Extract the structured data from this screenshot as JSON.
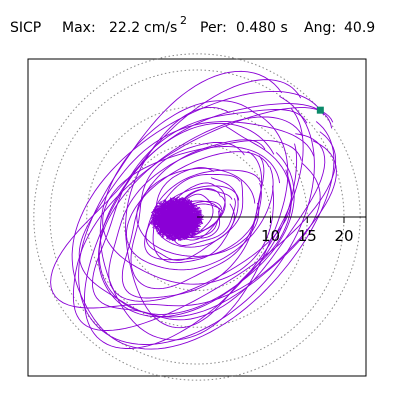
{
  "header": {
    "label": "SICP",
    "max_label": "Max:",
    "max_value": "22.2",
    "max_units": "cm/s",
    "max_exponent": "2",
    "period_label": "Per:",
    "period_value": "0.480 s",
    "angle_label": "Ang:",
    "angle_value": "40.9"
  },
  "chart_data": {
    "type": "scatter",
    "description_mode": "polar orbit trace of acceleration components",
    "title": "",
    "radial_axis": {
      "ticks": [
        10,
        15,
        20
      ],
      "tick_labels": [
        "10",
        "15",
        "20"
      ],
      "max": 22.2,
      "rings": [
        10,
        15,
        20
      ],
      "grid_style": "dotted"
    },
    "max_point": {
      "magnitude": 22.2,
      "angle_deg": 40.9,
      "marker_color": "#0b8a6a"
    },
    "trace_color": "#8a00d6",
    "ring_color": "#888888",
    "axis_color": "#000000",
    "orbit_loops": [
      {
        "a": 3.0,
        "b": 2.0,
        "rot": 10
      },
      {
        "a": 3.5,
        "b": 2.4,
        "rot": 25
      },
      {
        "a": 4.0,
        "b": 2.8,
        "rot": 35
      },
      {
        "a": 2.8,
        "b": 2.2,
        "rot": 70
      },
      {
        "a": 3.8,
        "b": 2.1,
        "rot": 15
      },
      {
        "a": 4.2,
        "b": 3.0,
        "rot": 55
      },
      {
        "a": 5.0,
        "b": 3.2,
        "rot": 30
      },
      {
        "a": 6.0,
        "b": 3.6,
        "rot": 20
      },
      {
        "a": 7.5,
        "b": 4.5,
        "rot": 40
      },
      {
        "a": 9.0,
        "b": 5.0,
        "rot": 30
      },
      {
        "a": 11.0,
        "b": 6.5,
        "rot": 35
      },
      {
        "a": 13.0,
        "b": 7.0,
        "rot": 45
      },
      {
        "a": 15.0,
        "b": 8.0,
        "rot": 30
      },
      {
        "a": 17.0,
        "b": 9.5,
        "rot": 38
      },
      {
        "a": 18.5,
        "b": 10.0,
        "rot": 42
      },
      {
        "a": 20.0,
        "b": 11.0,
        "rot": 33
      },
      {
        "a": 21.5,
        "b": 12.5,
        "rot": 40
      },
      {
        "a": 19.0,
        "b": 13.5,
        "rot": 55
      },
      {
        "a": 16.0,
        "b": 12.0,
        "rot": 60
      },
      {
        "a": 14.0,
        "b": 10.5,
        "rot": 75
      },
      {
        "a": 12.0,
        "b": 9.0,
        "rot": 20
      },
      {
        "a": 10.0,
        "b": 8.0,
        "rot": 50
      },
      {
        "a": 8.0,
        "b": 6.0,
        "rot": 10
      },
      {
        "a": 6.5,
        "b": 5.5,
        "rot": 65
      },
      {
        "a": 22.0,
        "b": 9.0,
        "rot": 36
      },
      {
        "a": 17.5,
        "b": 11.0,
        "rot": 28
      },
      {
        "a": 13.5,
        "b": 11.5,
        "rot": 40
      },
      {
        "a": 20.5,
        "b": 10.5,
        "rot": 48
      }
    ]
  }
}
